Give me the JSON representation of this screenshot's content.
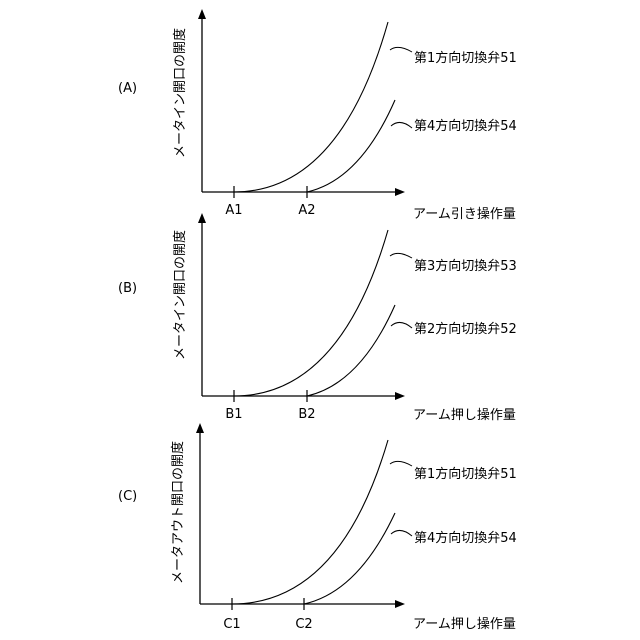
{
  "panels": [
    {
      "label": "(A)",
      "ylabel": "メータイン開口の開度",
      "xlabel": "アーム引き操作量",
      "ticks": [
        "A1",
        "A2"
      ],
      "curves": [
        "第1方向切換弁51",
        "第4方向切換弁54"
      ]
    },
    {
      "label": "(B)",
      "ylabel": "メータイン開口の開度",
      "xlabel": "アーム押し操作量",
      "ticks": [
        "B1",
        "B2"
      ],
      "curves": [
        "第3方向切換弁53",
        "第2方向切換弁52"
      ]
    },
    {
      "label": "(C)",
      "ylabel": "メータアウト開口の開度",
      "xlabel": "アーム押し操作量",
      "ticks": [
        "C1",
        "C2"
      ],
      "curves": [
        "第1方向切換弁51",
        "第4方向切換弁54"
      ]
    }
  ]
}
